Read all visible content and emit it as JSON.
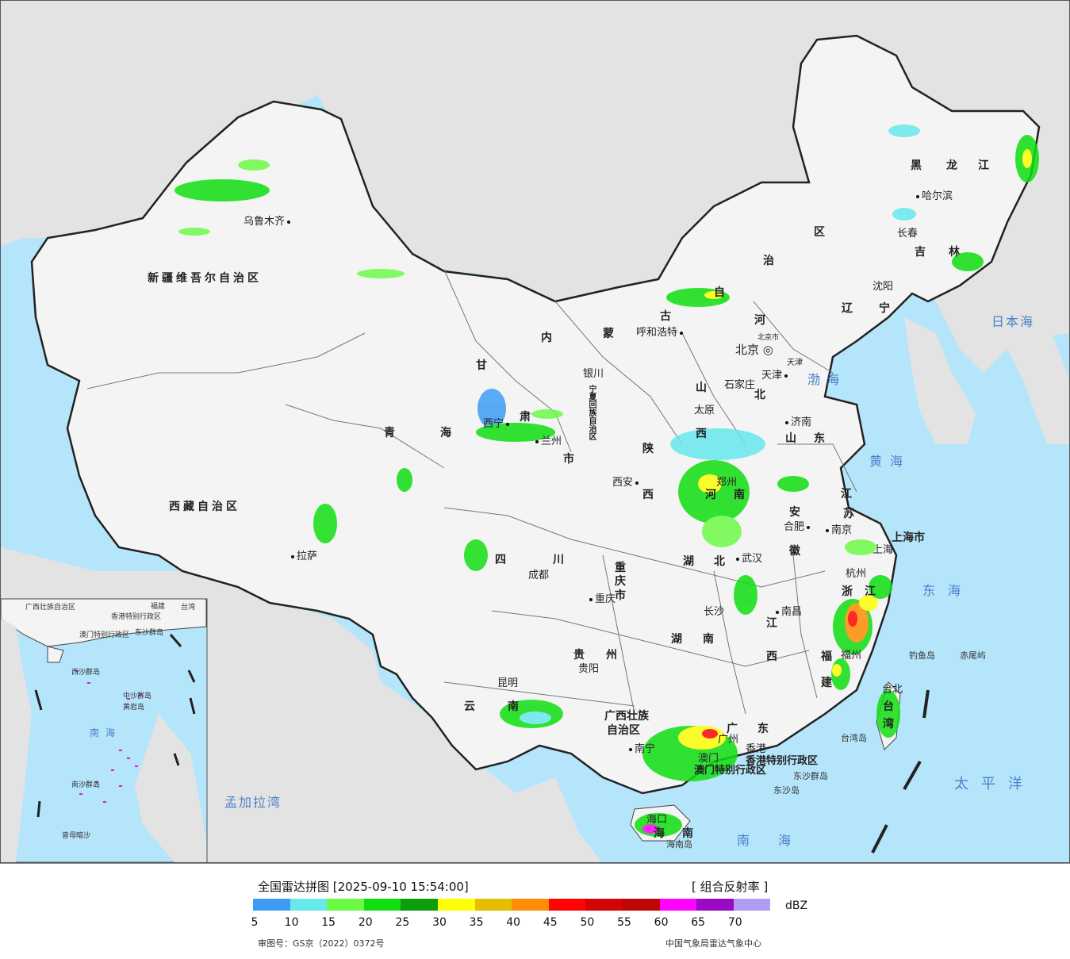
{
  "provinces": [
    {
      "text": "新疆维吾尔自治区"
    },
    {
      "text": "西藏自治区"
    },
    {
      "text": "青"
    },
    {
      "text": "海"
    },
    {
      "text": "甘"
    },
    {
      "text": "肃"
    },
    {
      "text": "内"
    },
    {
      "text": "蒙"
    },
    {
      "text": "古"
    },
    {
      "text": "自"
    },
    {
      "text": "治"
    },
    {
      "text": "区"
    },
    {
      "text": "黑"
    },
    {
      "text": "龙"
    },
    {
      "text": "江"
    },
    {
      "text": "吉"
    },
    {
      "text": "林"
    },
    {
      "text": "辽"
    },
    {
      "text": "宁"
    },
    {
      "text": "河"
    },
    {
      "text": "北"
    },
    {
      "text": "山"
    },
    {
      "text": "西"
    },
    {
      "text": "山"
    },
    {
      "text": "东"
    },
    {
      "text": "陕"
    },
    {
      "text": "西"
    },
    {
      "text": "河"
    },
    {
      "text": "南"
    },
    {
      "text": "江"
    },
    {
      "text": "苏"
    },
    {
      "text": "安"
    },
    {
      "text": "徽"
    },
    {
      "text": "上海市"
    },
    {
      "text": "浙"
    },
    {
      "text": "江"
    },
    {
      "text": "湖"
    },
    {
      "text": "北"
    },
    {
      "text": "湖"
    },
    {
      "text": "南"
    },
    {
      "text": "江"
    },
    {
      "text": "西"
    },
    {
      "text": "福"
    },
    {
      "text": "建"
    },
    {
      "text": "四"
    },
    {
      "text": "川"
    },
    {
      "text": "重"
    },
    {
      "text": "庆"
    },
    {
      "text": "市"
    },
    {
      "text": "贵"
    },
    {
      "text": "州"
    },
    {
      "text": "云"
    },
    {
      "text": "南"
    },
    {
      "text": "广西壮族"
    },
    {
      "text": "自治区"
    },
    {
      "text": "广"
    },
    {
      "text": "东"
    },
    {
      "text": "海"
    },
    {
      "text": "南"
    },
    {
      "text": "台"
    },
    {
      "text": "湾"
    },
    {
      "text": "宁夏回族自治区"
    },
    {
      "text": "市"
    },
    {
      "text": "香港特别行政区"
    },
    {
      "text": "澳门特别行政区"
    },
    {
      "text": "北京市"
    },
    {
      "text": "天津"
    }
  ],
  "cities": [
    {
      "text": "乌鲁木齐"
    },
    {
      "text": "拉萨"
    },
    {
      "text": "西宁"
    },
    {
      "text": "兰州"
    },
    {
      "text": "银川"
    },
    {
      "text": "呼和浩特"
    },
    {
      "text": "哈尔滨"
    },
    {
      "text": "长春"
    },
    {
      "text": "沈阳"
    },
    {
      "text": "北京"
    },
    {
      "text": "天津"
    },
    {
      "text": "石家庄"
    },
    {
      "text": "太原"
    },
    {
      "text": "济南"
    },
    {
      "text": "西安"
    },
    {
      "text": "郑州"
    },
    {
      "text": "合肥"
    },
    {
      "text": "南京"
    },
    {
      "text": "上海"
    },
    {
      "text": "杭州"
    },
    {
      "text": "武汉"
    },
    {
      "text": "成都"
    },
    {
      "text": "重庆"
    },
    {
      "text": "长沙"
    },
    {
      "text": "南昌"
    },
    {
      "text": "福州"
    },
    {
      "text": "台北"
    },
    {
      "text": "贵阳"
    },
    {
      "text": "昆明"
    },
    {
      "text": "南宁"
    },
    {
      "text": "广州"
    },
    {
      "text": "香港"
    },
    {
      "text": "澳门"
    },
    {
      "text": "海口"
    }
  ],
  "seas": [
    {
      "text": "日本海"
    },
    {
      "text": "渤海"
    },
    {
      "text": "黄海"
    },
    {
      "text": "东海"
    },
    {
      "text": "太平洋"
    },
    {
      "text": "南海"
    },
    {
      "text": "孟加拉湾"
    }
  ],
  "islands": [
    {
      "text": "钓鱼岛"
    },
    {
      "text": "赤尾屿"
    },
    {
      "text": "台湾岛"
    },
    {
      "text": "东沙群岛"
    },
    {
      "text": "东沙岛"
    },
    {
      "text": "海南岛"
    }
  ],
  "inset": {
    "labels": [
      {
        "text": "广西壮族自治区"
      },
      {
        "text": "香港特别行政区"
      },
      {
        "text": "澳门特别行政区"
      },
      {
        "text": "东沙群岛"
      },
      {
        "text": "西沙群岛"
      },
      {
        "text": "中沙群岛"
      },
      {
        "text": "黄岩岛"
      },
      {
        "text": "南海"
      },
      {
        "text": "南沙群岛"
      },
      {
        "text": "曾母暗沙"
      },
      {
        "text": "台湾"
      },
      {
        "text": "福建"
      }
    ]
  },
  "legend": {
    "title": "全国雷达拼图 [2025-09-10 15:54:00]",
    "product": "[ 组合反射率 ]",
    "unit": "dBZ",
    "colors": [
      "#3d9df5",
      "#66e8ec",
      "#6dfa47",
      "#10de10",
      "#0c9e0c",
      "#fefe07",
      "#e5be04",
      "#fe8c04",
      "#fe0404",
      "#d40404",
      "#bd0505",
      "#fe04fe",
      "#9a09c4",
      "#b09cf0"
    ],
    "ticks": [
      "5",
      "10",
      "15",
      "20",
      "25",
      "30",
      "35",
      "40",
      "45",
      "50",
      "55",
      "60",
      "65",
      "70"
    ],
    "approval": "审图号：GS京（2022）0372号",
    "source": "中国气象局雷达气象中心"
  }
}
